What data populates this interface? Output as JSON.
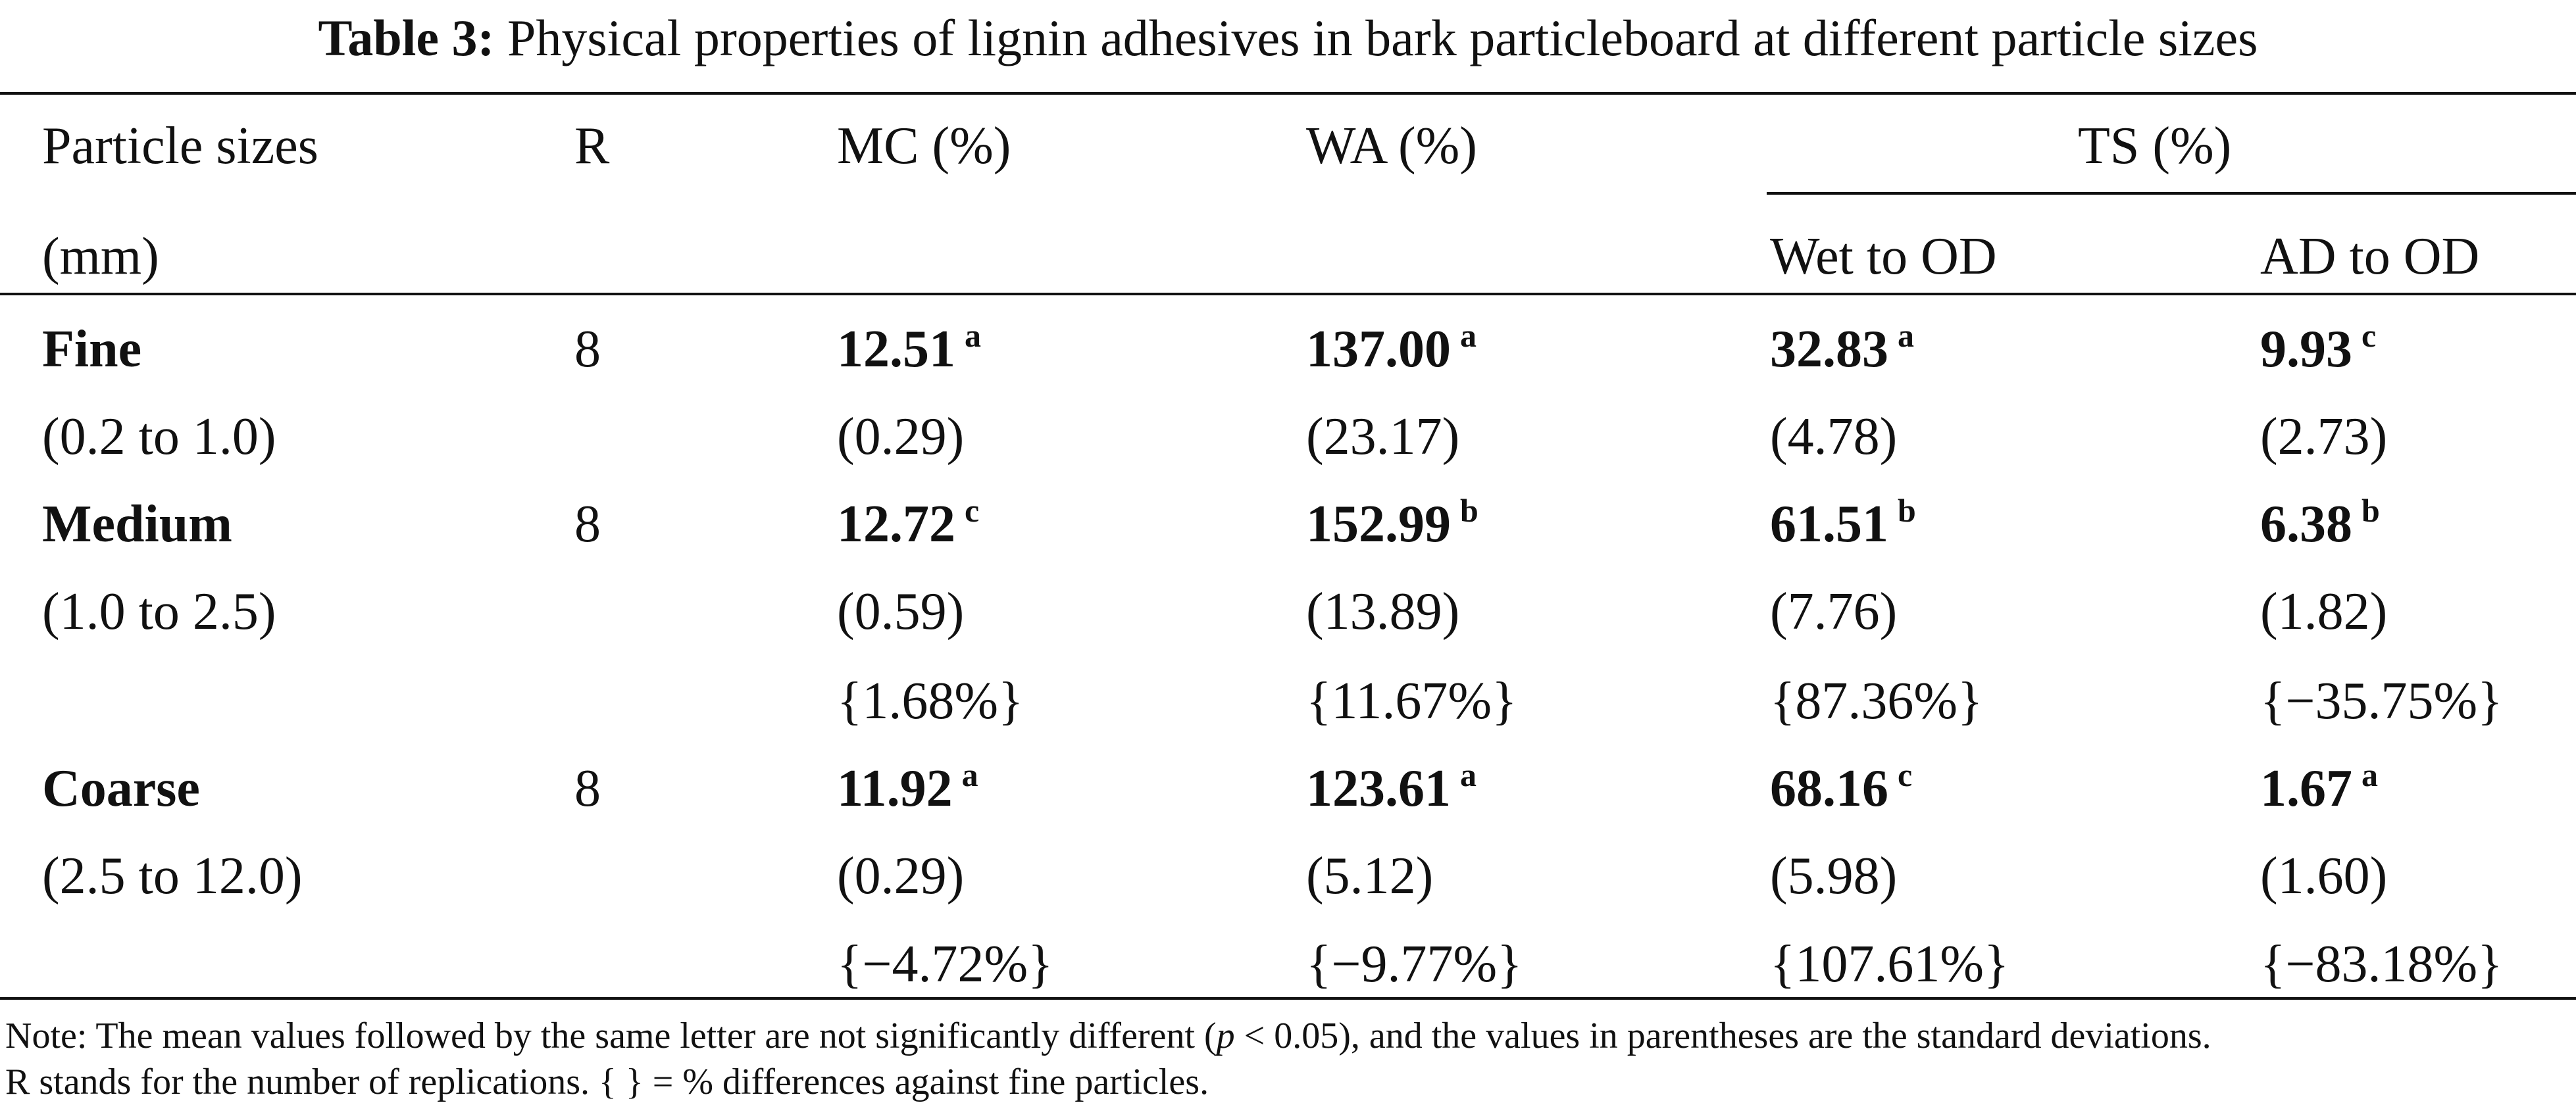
{
  "caption": {
    "label": "Table 3:",
    "text": "Physical properties of lignin adhesives in bark particleboard at different particle sizes"
  },
  "headers": {
    "particle_sizes": "Particle sizes",
    "unit": "(mm)",
    "r": "R",
    "mc": "MC (%)",
    "wa": "WA (%)",
    "ts": "TS (%)",
    "wet_to_od": "Wet to OD",
    "ad_to_od": "AD to OD"
  },
  "rows": [
    {
      "name": "Fine",
      "range": "(0.2 to 1.0)",
      "r": "8",
      "mc": {
        "mean": "12.51",
        "letter": "a",
        "sd": "(0.29)",
        "diff": ""
      },
      "wa": {
        "mean": "137.00",
        "letter": "a",
        "sd": "(23.17)",
        "diff": ""
      },
      "wet": {
        "mean": "32.83",
        "letter": "a",
        "sd": "(4.78)",
        "diff": ""
      },
      "ad": {
        "mean": "9.93",
        "letter": "c",
        "sd": "(2.73)",
        "diff": ""
      }
    },
    {
      "name": "Medium",
      "range": "(1.0 to 2.5)",
      "r": "8",
      "mc": {
        "mean": "12.72",
        "letter": "c",
        "sd": "(0.59)",
        "diff": "{1.68%}"
      },
      "wa": {
        "mean": "152.99",
        "letter": "b",
        "sd": "(13.89)",
        "diff": "{11.67%}"
      },
      "wet": {
        "mean": "61.51",
        "letter": "b",
        "sd": "(7.76)",
        "diff": "{87.36%}"
      },
      "ad": {
        "mean": "6.38",
        "letter": "b",
        "sd": "(1.82)",
        "diff": "{−35.75%}"
      }
    },
    {
      "name": "Coarse",
      "range": "(2.5 to 12.0)",
      "r": "8",
      "mc": {
        "mean": "11.92",
        "letter": "a",
        "sd": "(0.29)",
        "diff": "{−4.72%}"
      },
      "wa": {
        "mean": "123.61",
        "letter": "a",
        "sd": "(5.12)",
        "diff": "{−9.77%}"
      },
      "wet": {
        "mean": "68.16",
        "letter": "c",
        "sd": "(5.98)",
        "diff": "{107.61%}"
      },
      "ad": {
        "mean": "1.67",
        "letter": "a",
        "sd": "(1.60)",
        "diff": "{−83.18%}"
      }
    }
  ],
  "note": {
    "line1_before": "Note: The mean values followed by the same letter are not significantly different (",
    "line1_italic": "p",
    "line1_after": " < 0.05), and the values in parentheses are the standard deviations.",
    "line2": "R stands for the number of replications. { } = % differences against fine particles."
  }
}
